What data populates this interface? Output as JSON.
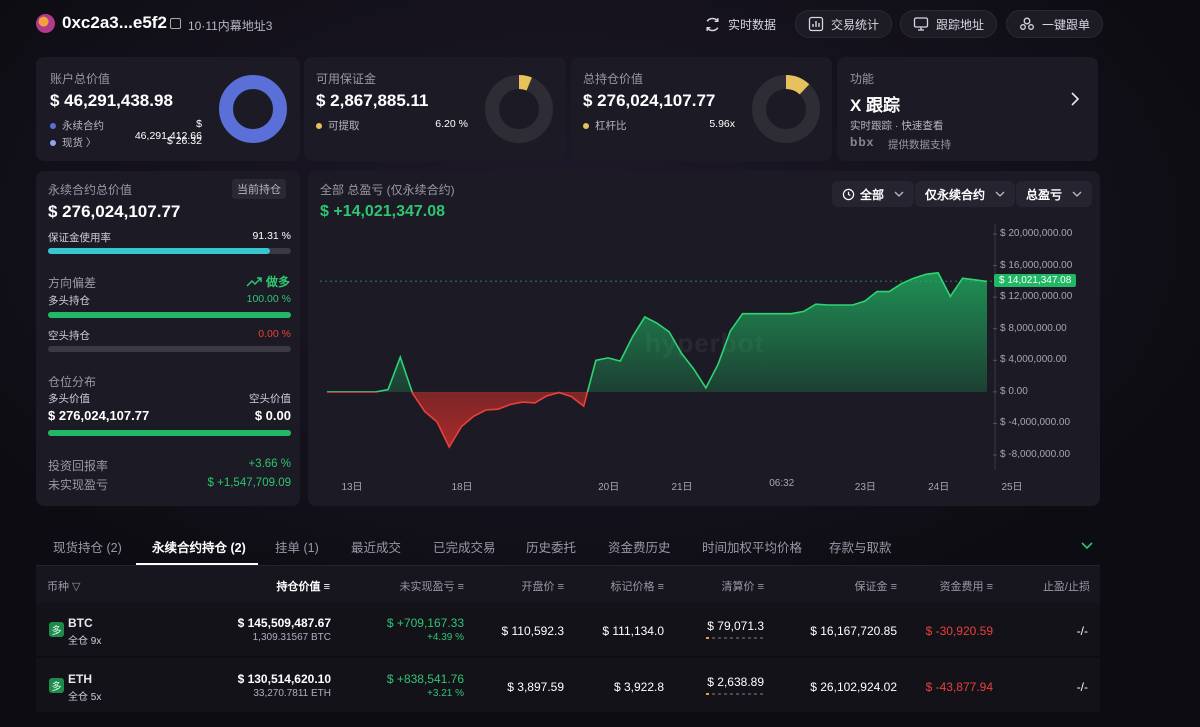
{
  "header": {
    "address": "0xc2a3...e5f2",
    "alias": "10·11内幕地址3",
    "buttons": [
      "实时数据",
      "交易统计",
      "跟踪地址",
      "一键跟单"
    ]
  },
  "cards": {
    "account": {
      "label": "账户总价值",
      "value": "$ 46,291,438.98",
      "rows": [
        {
          "name": "永续合约",
          "value": "$ 46,291,412.66"
        },
        {
          "name": "现货 〉",
          "value": "$ 26.32"
        }
      ],
      "colors": [
        "#5a6fd8",
        "#8fa6f2"
      ]
    },
    "margin": {
      "label": "可用保证金",
      "value": "$ 2,867,885.11",
      "row": {
        "name": "可提取",
        "value": "6.20 %"
      },
      "percent": 6.2,
      "color": "#e6c15c"
    },
    "position": {
      "label": "总持仓价值",
      "value": "$ 276,024,107.77",
      "row": {
        "name": "杠杆比",
        "value": "5.96x"
      },
      "percent": 12,
      "color": "#e6c15c"
    },
    "feature": {
      "label": "功能",
      "title": "X 跟踪",
      "sub": "实时跟踪 · 快速查看",
      "brand": "bbx",
      "support": "提供数据支持"
    }
  },
  "perp": {
    "label": "永续合约总价值",
    "tag": "当前持仓",
    "value": "$ 276,024,107.77",
    "margin_label": "保证金使用率",
    "margin_value": "91.31 %",
    "margin_pct": 91.31,
    "bias_label": "方向偏差",
    "bias_value": "做多",
    "long_label": "多头持仓",
    "long_value": "100.00 %",
    "long_pct": 100,
    "short_label": "空头持仓",
    "short_value": "0.00 %",
    "short_pct": 0,
    "dist_label": "仓位分布",
    "long_val_label": "多头价值",
    "short_val_label": "空头价值",
    "long_val": "$ 276,024,107.77",
    "short_val": "$ 0.00",
    "long_share": 100,
    "roi_label": "投资回报率",
    "roi_value": "+3.66 %",
    "upnl_label": "未实现盈亏",
    "upnl_value": "$ +1,547,709.09"
  },
  "chart_panel": {
    "title": "全部 总盈亏 (仅永续合约)",
    "value": "$ +14,021,347.08",
    "selects": [
      "全部",
      "仅永续合约",
      "总盈亏"
    ],
    "current_label": "$ 14,021,347.08",
    "watermark": "hyperbot"
  },
  "chart_data": {
    "type": "area",
    "ylim": [
      -10000000,
      21000000
    ],
    "yticks": [
      20000000,
      16000000,
      12000000,
      8000000,
      4000000,
      0,
      -4000000,
      -8000000
    ],
    "ytick_labels": [
      "$ 20,000,000.00",
      "$ 16,000,000.00",
      "$ 12,000,000.00",
      "$ 8,000,000.00",
      "$ 4,000,000.00",
      "$ 0.00",
      "$ -4,000,000.00",
      "$ -8,000,000.00"
    ],
    "xtick_labels": [
      "13日",
      "18日",
      "20日",
      "21日",
      "06:32",
      "23日",
      "24日",
      "25日"
    ],
    "xtick_index": [
      2,
      11,
      23,
      29,
      37,
      44,
      50,
      56
    ],
    "current": 14021347.08,
    "values": [
      0,
      0,
      0,
      0,
      0,
      300000,
      4400000,
      -200000,
      -2500000,
      -3800000,
      -7000000,
      -4400000,
      -3100000,
      -2300000,
      -2200000,
      -1600000,
      -1300000,
      -1400000,
      -500000,
      -100000,
      -600000,
      -1800000,
      4000000,
      4300000,
      3900000,
      7000000,
      9500000,
      8700000,
      7600000,
      4900000,
      2900000,
      500000,
      3500000,
      7700000,
      9900000,
      9900000,
      9900000,
      9900000,
      9900000,
      10200000,
      11100000,
      11000000,
      11000000,
      11000000,
      11500000,
      12700000,
      12700000,
      13700000,
      14400000,
      14900000,
      15100000,
      12100000,
      14400000,
      14200000,
      14000000
    ]
  },
  "table": {
    "tabs": [
      "现货持仓 (2)",
      "永续合约持仓 (2)",
      "挂单 (1)",
      "最近成交",
      "已完成交易",
      "历史委托",
      "资金费历史",
      "时间加权平均价格",
      "存款与取款"
    ],
    "headers": [
      "币种",
      "持仓价值",
      "未实现盈亏",
      "开盘价",
      "标记价格",
      "清算价",
      "保证金",
      "资金费用",
      "止盈/止损"
    ],
    "rows": [
      {
        "badge": "多",
        "coin": "BTC",
        "mode": "全仓 9x",
        "value": "$ 145,509,487.67",
        "qty": "1,309.31567 BTC",
        "pnl": "$ +709,167.33",
        "pnl_pct": "+4.39 %",
        "open": "$ 110,592.3",
        "mark": "$ 111,134.0",
        "liq": "$ 79,071.3",
        "margin": "$ 16,167,720.85",
        "funding": "$ -30,920.59",
        "tpsl": "-/-"
      },
      {
        "badge": "多",
        "coin": "ETH",
        "mode": "全仓 5x",
        "value": "$ 130,514,620.10",
        "qty": "33,270.7811 ETH",
        "pnl": "$ +838,541.76",
        "pnl_pct": "+3.21 %",
        "open": "$ 3,897.59",
        "mark": "$ 3,922.8",
        "liq": "$ 2,638.89",
        "margin": "$ 26,102,924.02",
        "funding": "$ -43,877.94",
        "tpsl": "-/-"
      }
    ]
  }
}
